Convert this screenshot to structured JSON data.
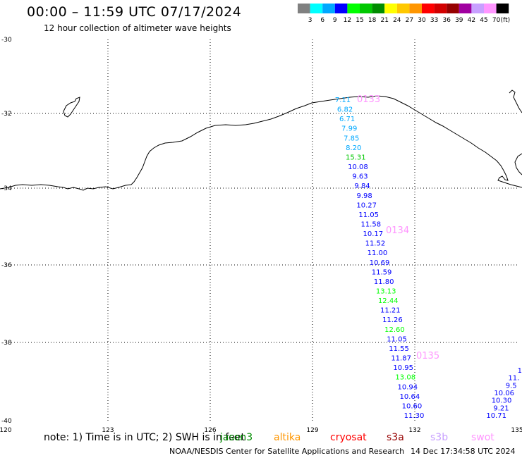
{
  "header": {
    "title": "00:00 – 11:59 UTC 07/17/2024",
    "subtitle": "12 hour collection of altimeter wave heights"
  },
  "legend": {
    "unit": "(ft)",
    "bins": [
      {
        "label": "3",
        "color": "#808080"
      },
      {
        "label": "6",
        "color": "#00ffff"
      },
      {
        "label": "9",
        "color": "#00a8ff"
      },
      {
        "label": "12",
        "color": "#0000ff"
      },
      {
        "label": "15",
        "color": "#00ff00"
      },
      {
        "label": "18",
        "color": "#00c800"
      },
      {
        "label": "21",
        "color": "#008c00"
      },
      {
        "label": "24",
        "color": "#ffff00"
      },
      {
        "label": "27",
        "color": "#ffc800"
      },
      {
        "label": "30",
        "color": "#ff9600"
      },
      {
        "label": "33",
        "color": "#ff0000"
      },
      {
        "label": "36",
        "color": "#d20000"
      },
      {
        "label": "39",
        "color": "#960000"
      },
      {
        "label": "42",
        "color": "#a000a0"
      },
      {
        "label": "45",
        "color": "#c8a0ff"
      },
      {
        "label": "70",
        "color": "#ff96ff"
      },
      {
        "label": "",
        "color": "#000000"
      }
    ]
  },
  "map": {
    "lon_ticks": [
      "120",
      "123",
      "126",
      "129",
      "132",
      "135"
    ],
    "lat_ticks": [
      "-30",
      "-32",
      "-34",
      "-36",
      "-38",
      "-40"
    ],
    "track_times": [
      {
        "label": "0133",
        "color": "#ff96ff"
      },
      {
        "label": "0134",
        "color": "#ff96ff"
      },
      {
        "label": "0135",
        "color": "#ff96ff"
      }
    ],
    "track_main": [
      {
        "v": "7.11",
        "c": "#00a8ff"
      },
      {
        "v": "6.82",
        "c": "#00a8ff"
      },
      {
        "v": "6.71",
        "c": "#00a8ff"
      },
      {
        "v": "7.99",
        "c": "#00a8ff"
      },
      {
        "v": "7.85",
        "c": "#00a8ff"
      },
      {
        "v": "8.20",
        "c": "#00a8ff"
      },
      {
        "v": "15.31",
        "c": "#00c800"
      },
      {
        "v": "10.08",
        "c": "#0000ff"
      },
      {
        "v": "9.63",
        "c": "#0000ff"
      },
      {
        "v": "9.84",
        "c": "#0000ff"
      },
      {
        "v": "9.98",
        "c": "#0000ff"
      },
      {
        "v": "10.27",
        "c": "#0000ff"
      },
      {
        "v": "11.05",
        "c": "#0000ff"
      },
      {
        "v": "11.58",
        "c": "#0000ff"
      },
      {
        "v": "10.17",
        "c": "#0000ff"
      },
      {
        "v": "11.52",
        "c": "#0000ff"
      },
      {
        "v": "11.00",
        "c": "#0000ff"
      },
      {
        "v": "10.69",
        "c": "#0000ff"
      },
      {
        "v": "11.59",
        "c": "#0000ff"
      },
      {
        "v": "11.80",
        "c": "#0000ff"
      },
      {
        "v": "13.13",
        "c": "#00ff00"
      },
      {
        "v": "12.44",
        "c": "#00ff00"
      },
      {
        "v": "11.21",
        "c": "#0000ff"
      },
      {
        "v": "11.26",
        "c": "#0000ff"
      },
      {
        "v": "12.60",
        "c": "#00ff00"
      },
      {
        "v": "11.05",
        "c": "#0000ff"
      },
      {
        "v": "11.55",
        "c": "#0000ff"
      },
      {
        "v": "11.87",
        "c": "#0000ff"
      },
      {
        "v": "10.95",
        "c": "#0000ff"
      },
      {
        "v": "13.08",
        "c": "#00ff00"
      },
      {
        "v": "10.94",
        "c": "#0000ff"
      },
      {
        "v": "10.64",
        "c": "#0000ff"
      },
      {
        "v": "10.60",
        "c": "#0000ff"
      },
      {
        "v": "11.30",
        "c": "#0000ff"
      }
    ],
    "track_east": [
      {
        "v": "1",
        "c": "#0000ff"
      },
      {
        "v": "11.",
        "c": "#0000ff"
      },
      {
        "v": "9.5",
        "c": "#0000ff"
      },
      {
        "v": "10.06",
        "c": "#0000ff"
      },
      {
        "v": "10.30",
        "c": "#0000ff"
      },
      {
        "v": "9.21",
        "c": "#0000ff"
      },
      {
        "v": "10.71",
        "c": "#0000ff"
      }
    ]
  },
  "footer": {
    "note": "note: 1) Time is in UTC; 2) SWH is in feet",
    "satellites": [
      {
        "name": "jason3",
        "color": "#008c00"
      },
      {
        "name": "altika",
        "color": "#ff9600"
      },
      {
        "name": "cryosat",
        "color": "#ff0000"
      },
      {
        "name": "s3a",
        "color": "#960000"
      },
      {
        "name": "s3b",
        "color": "#c8a0ff"
      },
      {
        "name": "swot",
        "color": "#ff96ff"
      }
    ],
    "credit": "NOAA/NESDIS Center for Satellite Applications and Research",
    "generated": "14 Dec 17:34:58 UTC 2024"
  }
}
